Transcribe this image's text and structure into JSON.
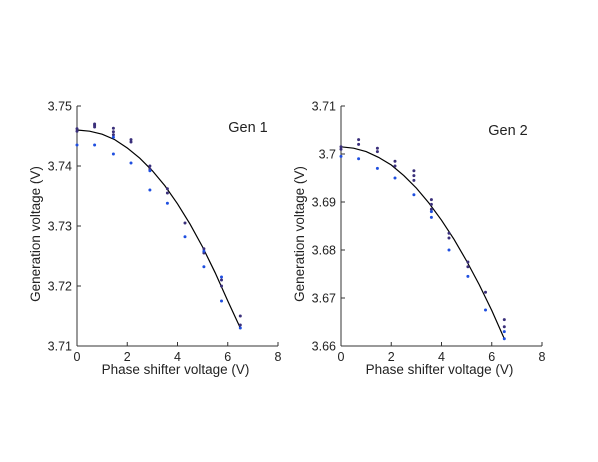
{
  "chart_data": [
    {
      "type": "scatter",
      "title": "Gen 1",
      "xlabel": "Phase shifter voltage (V)",
      "ylabel": "Generation voltage (V)",
      "xlim": [
        0,
        8
      ],
      "ylim": [
        3.71,
        3.75
      ],
      "xticks": [
        "0",
        "2",
        "4",
        "6",
        "8"
      ],
      "yticks": [
        "3.71",
        "3.72",
        "3.73",
        "3.74",
        "3.75"
      ],
      "grid": false,
      "colors": {
        "dark": "#3a2f7a",
        "blue": "#1f4fe0",
        "fit": "#000000"
      },
      "series": [
        {
          "color": "#3a2f7a",
          "x": [
            0,
            0,
            0.7,
            0.7,
            0.7,
            1.45,
            1.45,
            1.45,
            2.15,
            2.15,
            2.9,
            2.9,
            3.6,
            3.6,
            4.3,
            5.05,
            5.05,
            5.75,
            5.75,
            6.5,
            6.5
          ],
          "y": [
            3.7458,
            3.7462,
            3.7465,
            3.7468,
            3.747,
            3.7452,
            3.7457,
            3.7463,
            3.744,
            3.7444,
            3.7395,
            3.74,
            3.7355,
            3.7362,
            3.7305,
            3.7255,
            3.7262,
            3.72,
            3.721,
            3.7135,
            3.715
          ]
        },
        {
          "color": "#1f4fe0",
          "x": [
            0,
            0.7,
            1.45,
            1.45,
            2.15,
            2.9,
            2.9,
            3.6,
            4.3,
            5.05,
            5.05,
            5.75,
            5.75,
            6.5
          ],
          "y": [
            3.7435,
            3.7435,
            3.742,
            3.7448,
            3.7405,
            3.736,
            3.7392,
            3.7338,
            3.7282,
            3.7232,
            3.7258,
            3.7175,
            3.7215,
            3.713
          ]
        }
      ],
      "fit_line": {
        "x": [
          0,
          0.5,
          1,
          1.5,
          2,
          2.5,
          3,
          3.5,
          4,
          4.5,
          5,
          5.5,
          6,
          6.5
        ],
        "y": [
          3.746,
          3.7458,
          3.7453,
          3.7444,
          3.743,
          3.7413,
          3.7392,
          3.7367,
          3.7337,
          3.7303,
          3.7265,
          3.7222,
          3.7175,
          3.713
        ]
      }
    },
    {
      "type": "scatter",
      "title": "Gen 2",
      "xlabel": "Phase shifter voltage (V)",
      "ylabel": "Generation voltage (V)",
      "xlim": [
        0,
        8
      ],
      "ylim": [
        3.66,
        3.71
      ],
      "xticks": [
        "0",
        "2",
        "4",
        "6",
        "8"
      ],
      "yticks": [
        "3.66",
        "3.67",
        "3.68",
        "3.69",
        "3.7",
        "3.71"
      ],
      "grid": false,
      "colors": {
        "dark": "#3a2f7a",
        "blue": "#1f4fe0",
        "fit": "#000000"
      },
      "series": [
        {
          "color": "#3a2f7a",
          "x": [
            0,
            0,
            0.7,
            0.7,
            1.45,
            1.45,
            2.15,
            2.15,
            2.9,
            2.9,
            2.9,
            3.6,
            3.6,
            3.6,
            4.3,
            4.3,
            5.05,
            5.05,
            5.75,
            6.5,
            6.5
          ],
          "y": [
            3.701,
            3.7015,
            3.702,
            3.703,
            3.7005,
            3.7012,
            3.6975,
            3.6985,
            3.6945,
            3.6955,
            3.6965,
            3.6885,
            3.6895,
            3.6905,
            3.6825,
            3.6835,
            3.6765,
            3.6775,
            3.6712,
            3.664,
            3.6655
          ]
        },
        {
          "color": "#1f4fe0",
          "x": [
            0,
            0.7,
            1.45,
            2.15,
            2.9,
            3.6,
            3.6,
            4.3,
            5.05,
            5.75,
            6.5,
            6.5
          ],
          "y": [
            3.6995,
            3.699,
            3.697,
            3.695,
            3.6915,
            3.6868,
            3.688,
            3.68,
            3.6745,
            3.6675,
            3.6615,
            3.663
          ]
        }
      ],
      "fit_line": {
        "x": [
          0,
          0.5,
          1,
          1.5,
          2,
          2.5,
          3,
          3.5,
          4,
          4.5,
          5,
          5.5,
          6,
          6.5
        ],
        "y": [
          3.7015,
          3.7012,
          3.7005,
          3.6993,
          3.6977,
          3.6955,
          3.6929,
          3.6898,
          3.6862,
          3.6822,
          3.6777,
          3.6728,
          3.6674,
          3.6615
        ]
      }
    }
  ]
}
